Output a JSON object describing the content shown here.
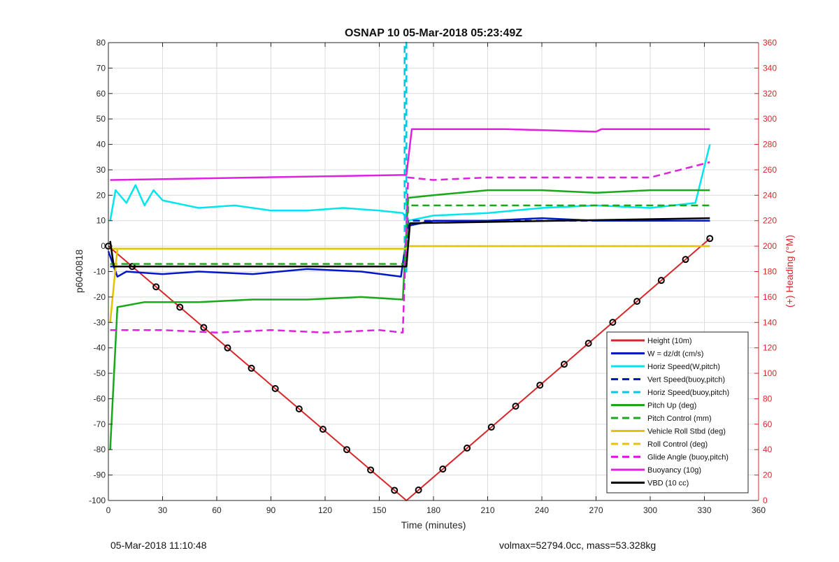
{
  "footer": {
    "left": "05-Mar-2018 11:10:48",
    "right": "volmax=52794.0cc, mass=53.328kg"
  },
  "chart_data": {
    "type": "line",
    "title": "OSNAP 10 05-Mar-2018 05:23:49Z",
    "xlabel": "Time (minutes)",
    "ylabel": "p6040818",
    "y2label": "(+) Heading (°M)",
    "xlim": [
      0,
      360
    ],
    "ylim": [
      -100,
      80
    ],
    "y2lim": [
      0,
      360
    ],
    "xticks": [
      "0",
      "30",
      "60",
      "90",
      "120",
      "150",
      "180",
      "210",
      "240",
      "270",
      "300",
      "330",
      "360"
    ],
    "yticks": [
      "-100",
      "-90",
      "-80",
      "-70",
      "-60",
      "-50",
      "-40",
      "-30",
      "-20",
      "-10",
      "0",
      "10",
      "20",
      "30",
      "40",
      "50",
      "60",
      "70",
      "80"
    ],
    "y2ticks": [
      "0",
      "20",
      "40",
      "60",
      "80",
      "100",
      "120",
      "140",
      "160",
      "180",
      "200",
      "220",
      "240",
      "260",
      "280",
      "300",
      "320",
      "340",
      "360"
    ],
    "grid": true,
    "legend_position": "bottom-right",
    "series": [
      {
        "name": "Height (10m)",
        "color": "#d62728",
        "style": "solid",
        "x": [
          0,
          165,
          333
        ],
        "y": [
          0,
          -100,
          3
        ]
      },
      {
        "name": "W = dz/dt (cm/s)",
        "color": "#0019c8",
        "style": "solid",
        "x": [
          0,
          5,
          10,
          30,
          50,
          80,
          110,
          140,
          162,
          166,
          180,
          210,
          240,
          270,
          300,
          333
        ],
        "y": [
          -2,
          -12,
          -10,
          -11,
          -10,
          -11,
          -9,
          -10,
          -12,
          8,
          10,
          10,
          11,
          10,
          10,
          10
        ]
      },
      {
        "name": "Horiz Speed(W,pitch)",
        "color": "#00e5ee",
        "style": "solid",
        "x": [
          1,
          4,
          10,
          15,
          20,
          25,
          30,
          50,
          70,
          90,
          110,
          130,
          150,
          163,
          166,
          180,
          210,
          240,
          270,
          300,
          325,
          333
        ],
        "y": [
          10,
          22,
          17,
          24,
          16,
          22,
          18,
          15,
          16,
          14,
          14,
          15,
          14,
          13,
          10,
          12,
          13,
          15,
          16,
          15,
          17,
          40
        ]
      },
      {
        "name": "Vert Speed(buoy,pitch)",
        "color": "#0019c8",
        "style": "dashed",
        "x": [
          1,
          165,
          166,
          333
        ],
        "y": [
          -8,
          -8,
          10,
          10
        ]
      },
      {
        "name": "Horiz Speed(buoy,pitch)",
        "color": "#00c8e0",
        "style": "dashed",
        "x": [
          164,
          164,
          165,
          165
        ],
        "y": [
          -12,
          80,
          80,
          -12
        ]
      },
      {
        "name": "Pitch Up (deg)",
        "color": "#18a818",
        "style": "solid",
        "x": [
          1,
          5,
          20,
          50,
          80,
          110,
          140,
          163,
          166,
          180,
          210,
          240,
          270,
          300,
          333
        ],
        "y": [
          -80,
          -24,
          -22,
          -22,
          -21,
          -21,
          -20,
          -21,
          19,
          20,
          22,
          22,
          21,
          22,
          22
        ]
      },
      {
        "name": "Pitch Control (mm)",
        "color": "#18a818",
        "style": "dashed",
        "x": [
          1,
          165,
          166,
          333
        ],
        "y": [
          -7,
          -7,
          16,
          16
        ]
      },
      {
        "name": "Vehicle Roll Stbd (deg)",
        "color": "#e6c300",
        "style": "solid",
        "x": [
          1,
          5,
          165,
          166,
          333
        ],
        "y": [
          -30,
          -1,
          -1,
          0,
          0
        ]
      },
      {
        "name": "Roll Control (deg)",
        "color": "#e6c300",
        "style": "dashed",
        "x": [
          1,
          165,
          166,
          333
        ],
        "y": [
          -1,
          -1,
          0,
          0
        ]
      },
      {
        "name": "Glide Angle (buoy,pitch)",
        "color": "#e020e0",
        "style": "dashed",
        "x": [
          1,
          30,
          60,
          90,
          120,
          150,
          163,
          166,
          180,
          210,
          240,
          270,
          300,
          333
        ],
        "y": [
          -33,
          -33,
          -34,
          -33,
          -34,
          -33,
          -34,
          27,
          26,
          27,
          27,
          27,
          27,
          33
        ]
      },
      {
        "name": "Buoyancy (10g)",
        "color": "#e020e0",
        "style": "solid",
        "x": [
          1,
          2,
          165,
          168,
          220,
          270,
          273,
          333
        ],
        "y": [
          26,
          26,
          28,
          46,
          46,
          45,
          46,
          46
        ]
      },
      {
        "name": "VBD (10 cc)",
        "color": "#000000",
        "style": "solid",
        "x": [
          1,
          3,
          8,
          165,
          167,
          333
        ],
        "y": [
          2,
          -8,
          -8,
          -8,
          9,
          11
        ]
      }
    ]
  }
}
